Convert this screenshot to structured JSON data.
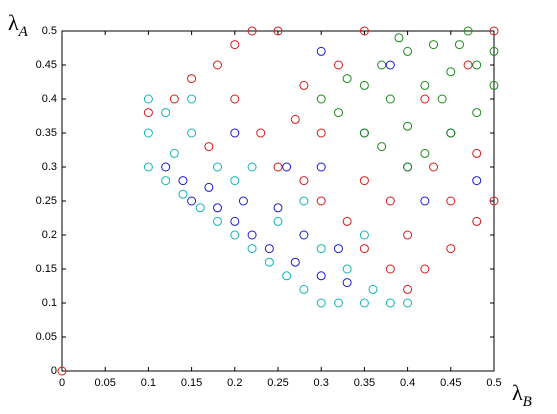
{
  "chart_data": {
    "type": "scatter",
    "xlabel": {
      "text": "λ",
      "sub": "B"
    },
    "ylabel": {
      "text": "λ",
      "sub": "A"
    },
    "xlim": [
      0,
      0.5
    ],
    "ylim": [
      0,
      0.5
    ],
    "xticks": [
      0,
      0.05,
      0.1,
      0.15,
      0.2,
      0.25,
      0.3,
      0.35,
      0.4,
      0.45,
      0.5
    ],
    "yticks": [
      0,
      0.05,
      0.1,
      0.15,
      0.2,
      0.25,
      0.3,
      0.35,
      0.4,
      0.45,
      0.5
    ],
    "marker": "open-circle",
    "series": [
      {
        "color": "#11b5b5",
        "x": [
          0.1,
          0.1,
          0.1,
          0.12,
          0.12,
          0.14,
          0.15,
          0.16,
          0.18,
          0.18,
          0.2,
          0.2,
          0.22,
          0.24,
          0.25,
          0.26,
          0.28,
          0.3,
          0.3,
          0.32,
          0.33,
          0.35,
          0.36,
          0.38,
          0.4,
          0.22,
          0.28,
          0.15,
          0.13,
          0.35
        ],
        "values": [
          0.3,
          0.35,
          0.4,
          0.28,
          0.38,
          0.26,
          0.35,
          0.24,
          0.22,
          0.3,
          0.2,
          0.28,
          0.18,
          0.16,
          0.22,
          0.14,
          0.12,
          0.1,
          0.18,
          0.1,
          0.15,
          0.1,
          0.12,
          0.1,
          0.1,
          0.3,
          0.25,
          0.4,
          0.32,
          0.2
        ]
      },
      {
        "color": "#1a1acc",
        "x": [
          0.12,
          0.14,
          0.15,
          0.17,
          0.18,
          0.2,
          0.21,
          0.22,
          0.24,
          0.25,
          0.27,
          0.28,
          0.3,
          0.32,
          0.33,
          0.26,
          0.3,
          0.35,
          0.38,
          0.3,
          0.4,
          0.45,
          0.42,
          0.48,
          0.2
        ],
        "values": [
          0.3,
          0.28,
          0.25,
          0.27,
          0.24,
          0.22,
          0.25,
          0.2,
          0.18,
          0.24,
          0.16,
          0.2,
          0.14,
          0.18,
          0.13,
          0.3,
          0.3,
          0.35,
          0.45,
          0.47,
          0.3,
          0.35,
          0.25,
          0.28,
          0.35
        ]
      },
      {
        "color": "#d41a1a",
        "x": [
          0.1,
          0.13,
          0.15,
          0.18,
          0.2,
          0.22,
          0.25,
          0.2,
          0.23,
          0.25,
          0.28,
          0.3,
          0.33,
          0.35,
          0.38,
          0.4,
          0.42,
          0.45,
          0.48,
          0.5,
          0.45,
          0.4,
          0.35,
          0.3,
          0.28,
          0.32,
          0.35,
          0.42,
          0.47,
          0.5,
          0.48,
          0.43,
          0.38,
          0.27,
          0.17,
          0
        ],
        "values": [
          0.38,
          0.4,
          0.43,
          0.45,
          0.48,
          0.5,
          0.5,
          0.4,
          0.35,
          0.3,
          0.28,
          0.25,
          0.22,
          0.18,
          0.15,
          0.12,
          0.15,
          0.18,
          0.22,
          0.25,
          0.25,
          0.2,
          0.28,
          0.35,
          0.42,
          0.45,
          0.5,
          0.4,
          0.45,
          0.5,
          0.32,
          0.3,
          0.25,
          0.37,
          0.33,
          0
        ]
      },
      {
        "color": "#1a8a1a",
        "x": [
          0.3,
          0.32,
          0.35,
          0.37,
          0.4,
          0.42,
          0.45,
          0.48,
          0.5,
          0.5,
          0.47,
          0.43,
          0.4,
          0.37,
          0.35,
          0.38,
          0.42,
          0.45,
          0.4,
          0.44,
          0.48,
          0.46,
          0.33,
          0.39
        ],
        "values": [
          0.4,
          0.38,
          0.35,
          0.33,
          0.3,
          0.32,
          0.35,
          0.38,
          0.42,
          0.47,
          0.5,
          0.48,
          0.47,
          0.45,
          0.42,
          0.4,
          0.42,
          0.44,
          0.36,
          0.4,
          0.45,
          0.48,
          0.43,
          0.49
        ]
      }
    ]
  }
}
